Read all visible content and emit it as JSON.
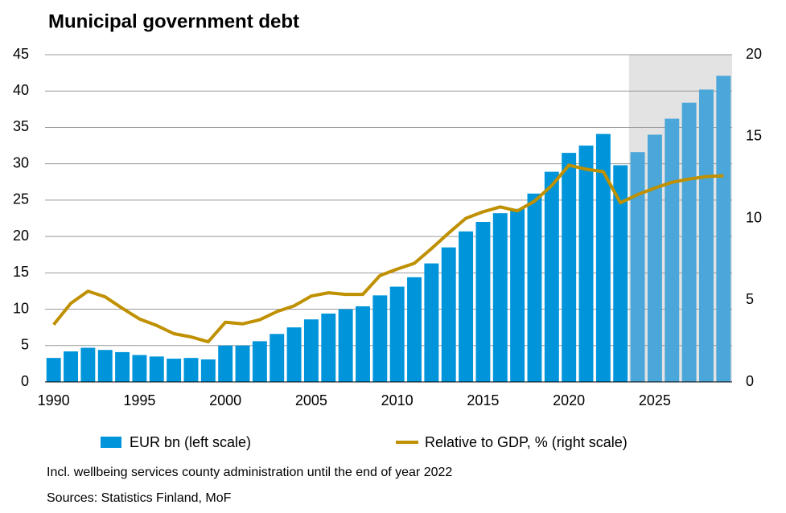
{
  "chart_data": {
    "type": "bar-line",
    "title": "Municipal government debt",
    "notes": [
      "Incl. wellbeing services county administration until the end of year 2022",
      "Sources: Statistics Finland, MoF"
    ],
    "x": [
      1990,
      1991,
      1992,
      1993,
      1994,
      1995,
      1996,
      1997,
      1998,
      1999,
      2000,
      2001,
      2002,
      2003,
      2004,
      2005,
      2006,
      2007,
      2008,
      2009,
      2010,
      2011,
      2012,
      2013,
      2014,
      2015,
      2016,
      2017,
      2018,
      2019,
      2020,
      2021,
      2022,
      2023,
      2024,
      2025,
      2026,
      2027,
      2028,
      2029
    ],
    "xticks": [
      1990,
      1995,
      2000,
      2005,
      2010,
      2015,
      2020,
      2025
    ],
    "ylim": [
      0,
      45
    ],
    "yticks": [
      0,
      5,
      10,
      15,
      20,
      25,
      30,
      35,
      40,
      45
    ],
    "y2lim": [
      0,
      20
    ],
    "y2ticks": [
      0,
      5,
      10,
      15,
      20
    ],
    "grid": true,
    "legend": "bottom",
    "forecast_from": 2024,
    "forecast_shade": "#e3e3e3",
    "series": [
      {
        "name": "EUR bn (left scale)",
        "type": "bar",
        "color": "#0095da",
        "forecast_color": "#4ba6d9",
        "values": [
          3.3,
          4.2,
          4.7,
          4.4,
          4.1,
          3.7,
          3.5,
          3.2,
          3.3,
          3.1,
          5.0,
          5.0,
          5.6,
          6.6,
          7.5,
          8.6,
          9.4,
          10.0,
          10.4,
          11.9,
          13.1,
          14.4,
          16.3,
          18.5,
          20.7,
          22.0,
          23.2,
          23.8,
          25.9,
          28.9,
          31.5,
          32.5,
          34.1,
          29.8,
          31.6,
          34.0,
          36.2,
          38.4,
          40.2,
          42.1
        ]
      },
      {
        "name": "Relative to GDP, % (right scale)",
        "type": "line",
        "axis": "y2",
        "color": "#bf9000",
        "values": [
          3.5,
          4.8,
          5.55,
          5.2,
          4.5,
          3.85,
          3.45,
          2.95,
          2.75,
          2.45,
          3.65,
          3.55,
          3.8,
          4.3,
          4.65,
          5.25,
          5.45,
          5.35,
          5.35,
          6.5,
          6.9,
          7.25,
          8.15,
          9.1,
          10.0,
          10.4,
          10.7,
          10.45,
          11.05,
          12.0,
          13.25,
          13.0,
          12.85,
          10.95,
          11.45,
          11.85,
          12.2,
          12.4,
          12.55,
          12.6
        ]
      }
    ]
  }
}
